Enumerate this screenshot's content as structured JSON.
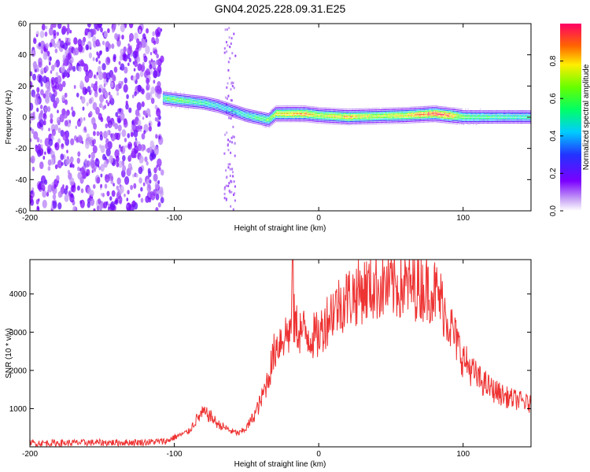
{
  "title": "GN04.2025.228.09.31.E25",
  "chart_data": [
    {
      "type": "heatmap",
      "xlabel": "Height of straight line (km)",
      "ylabel": "Frequency (Hz)",
      "xlim": [
        -200,
        147
      ],
      "ylim": [
        -60,
        60
      ],
      "xticks": [
        -200,
        -100,
        0,
        100
      ],
      "yticks": [
        -60,
        -40,
        -20,
        0,
        20,
        40,
        60
      ],
      "colorbar": {
        "label": "Normalized spectral amplitude",
        "range": [
          0.0,
          1.0
        ],
        "ticks": [
          0.0,
          0.2,
          0.4,
          0.6,
          0.8
        ]
      },
      "noise_region_x": [
        -200,
        -108
      ],
      "sparse_column_x": [
        -66,
        -58
      ],
      "ridge": {
        "description_free_values": true,
        "x": [
          -108,
          -100,
          -90,
          -80,
          -70,
          -60,
          -50,
          -40,
          -35,
          -30,
          -20,
          -10,
          0,
          20,
          40,
          60,
          80,
          90,
          100,
          110,
          130,
          147
        ],
        "frequency": [
          12,
          11,
          10,
          9,
          7,
          4,
          1,
          -1,
          -2,
          2,
          2,
          2,
          1,
          0,
          0.5,
          1,
          2,
          1,
          0,
          0,
          0,
          0
        ],
        "amplitude": [
          0.55,
          0.6,
          0.55,
          0.5,
          0.45,
          0.45,
          0.5,
          0.55,
          0.6,
          0.75,
          0.8,
          0.85,
          0.7,
          0.8,
          0.7,
          0.75,
          0.95,
          0.9,
          0.6,
          0.55,
          0.5,
          0.5
        ]
      }
    },
    {
      "type": "line",
      "xlabel": "Height of straight line (km)",
      "ylabel": "SNR (10 * v/v)",
      "xlim": [
        -200,
        147
      ],
      "ylim": [
        0,
        4900
      ],
      "xticks": [
        -200,
        -100,
        0,
        100
      ],
      "yticks": [
        1000,
        2000,
        3000,
        4000
      ],
      "color": "#ee3333",
      "series": [
        {
          "x": [
            -200,
            -180,
            -160,
            -140,
            -120,
            -105,
            -100,
            -90,
            -85,
            -80,
            -75,
            -70,
            -65,
            -60,
            -55,
            -50,
            -45,
            -40,
            -35,
            -30,
            -25,
            -20,
            -18,
            -15,
            -10,
            -5,
            0,
            5,
            10,
            20,
            30,
            40,
            50,
            60,
            70,
            80,
            85,
            90,
            95,
            100,
            110,
            120,
            130,
            140,
            147
          ],
          "y": [
            100,
            100,
            110,
            110,
            120,
            150,
            250,
            400,
            700,
            900,
            800,
            600,
            500,
            400,
            350,
            500,
            800,
            1200,
            1800,
            2600,
            2900,
            3000,
            3400,
            3100,
            3000,
            2900,
            2900,
            3300,
            3600,
            3900,
            4100,
            4200,
            4200,
            4200,
            4200,
            4100,
            3800,
            3300,
            2800,
            2300,
            1800,
            1500,
            1300,
            1200,
            1100
          ]
        }
      ]
    }
  ]
}
